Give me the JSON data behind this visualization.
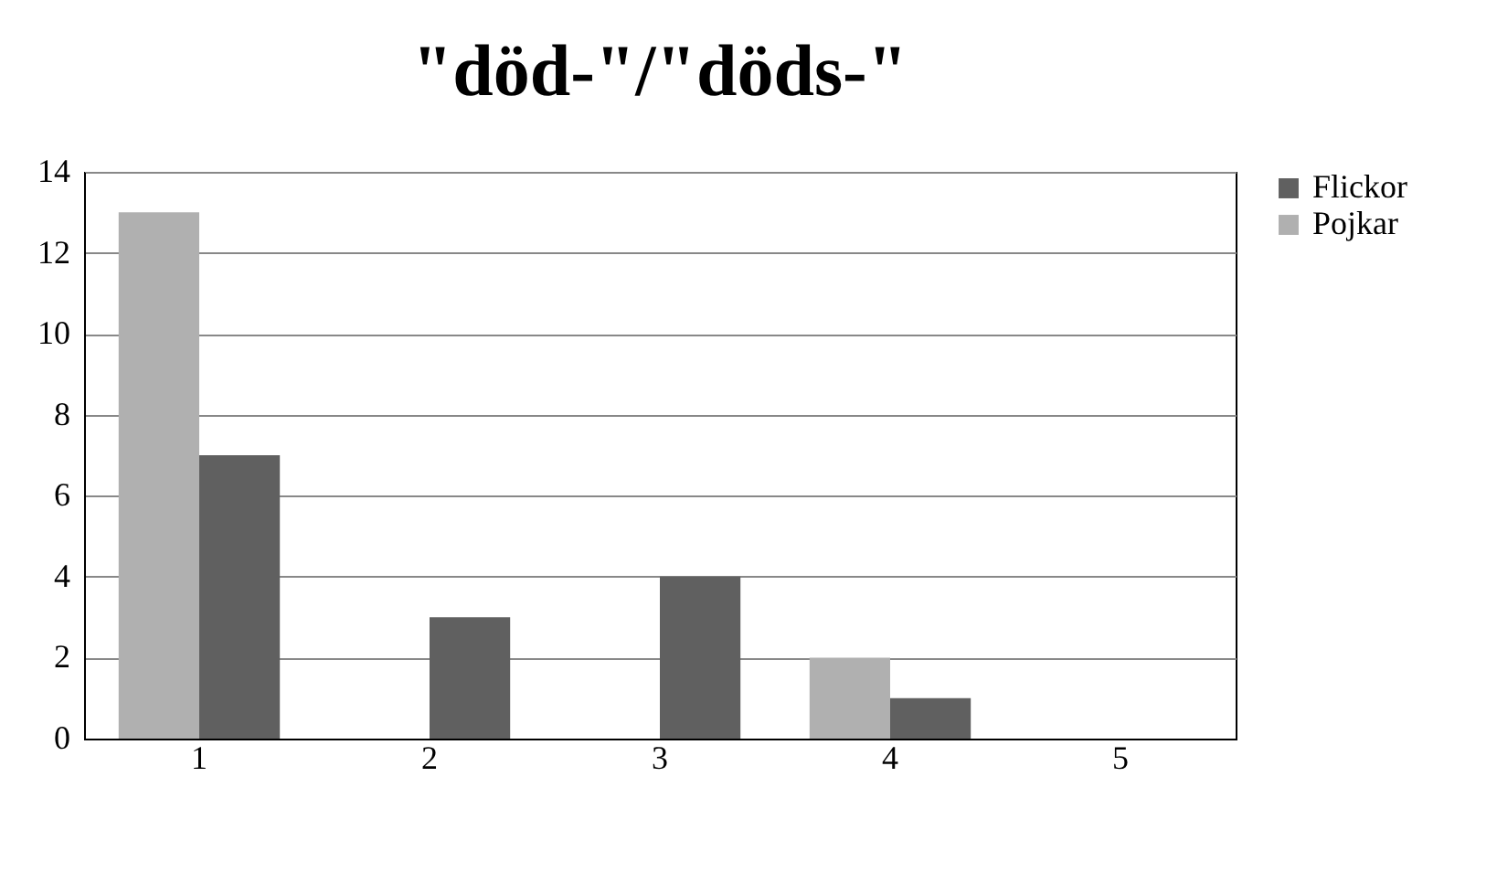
{
  "chart_data": {
    "type": "bar",
    "title": "\"död-\"/\"döds-\"",
    "categories": [
      "1",
      "2",
      "3",
      "4",
      "5"
    ],
    "series": [
      {
        "name": "Flickor",
        "color": "#606060",
        "values": [
          7,
          3,
          4,
          1,
          0
        ]
      },
      {
        "name": "Pojkar",
        "color": "#b0b0b0",
        "values": [
          13,
          0,
          0,
          2,
          0
        ]
      }
    ],
    "ylim": [
      0,
      14
    ],
    "yticks": [
      0,
      2,
      4,
      6,
      8,
      10,
      12,
      14
    ],
    "grid": "y",
    "legend": "right"
  }
}
